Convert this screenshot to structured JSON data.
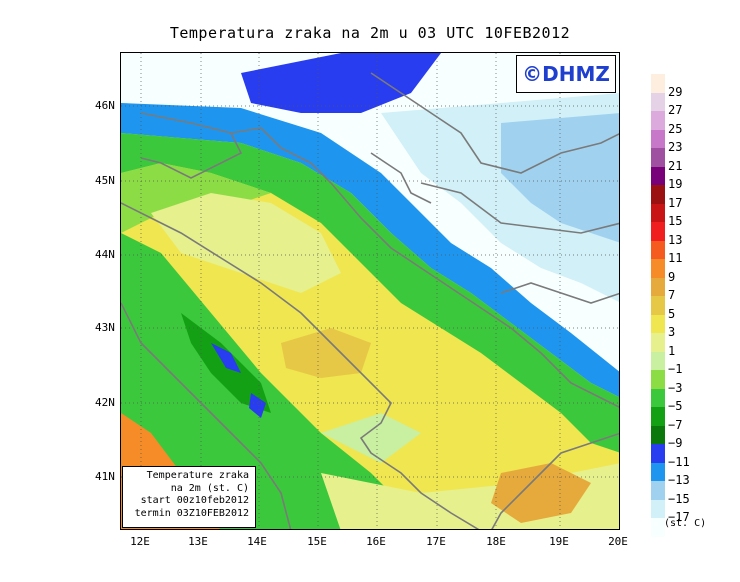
{
  "title": "Temperatura zraka na 2m u 03 UTC 10FEB2012",
  "credit": "©DHMZ",
  "infobox": {
    "line1": "Temperature zraka",
    "line2": "na 2m (st. C)",
    "line3": "start 00z10feb2012",
    "line4": "termin 03Z10FEB2012"
  },
  "axes": {
    "lat_labels": [
      "46N",
      "45N",
      "44N",
      "43N",
      "42N",
      "41N"
    ],
    "lon_labels": [
      "12E",
      "13E",
      "14E",
      "15E",
      "16E",
      "17E",
      "18E",
      "19E",
      "20E"
    ]
  },
  "legend": {
    "unit": "(st. C)",
    "labels": [
      "29",
      "27",
      "25",
      "23",
      "21",
      "19",
      "17",
      "15",
      "13",
      "11",
      "9",
      "7",
      "5",
      "3",
      "1",
      "−1",
      "−3",
      "−5",
      "−7",
      "−9",
      "−11",
      "−13",
      "−15",
      "−17"
    ],
    "colors": [
      "#fdeee0",
      "#e6d2e6",
      "#dcaadc",
      "#c878c8",
      "#a050a0",
      "#780078",
      "#9b1010",
      "#c81414",
      "#f01e1e",
      "#f55a1e",
      "#f58c28",
      "#e6aa3c",
      "#e6c846",
      "#f0e650",
      "#e6f08c",
      "#c8f0a0",
      "#8cdc46",
      "#3cc83c",
      "#14a014",
      "#0a780a",
      "#283cf0",
      "#1e96f0",
      "#a0d2f0",
      "#d2f0f8",
      "#f8ffff"
    ]
  },
  "map_colors": {
    "sea_warm": "#f0dc6e",
    "sea_hot": "#e6aa46",
    "land_green": "#3cc83c",
    "cold_blue": "#283cf0",
    "boundary": "#7a7a7a"
  }
}
